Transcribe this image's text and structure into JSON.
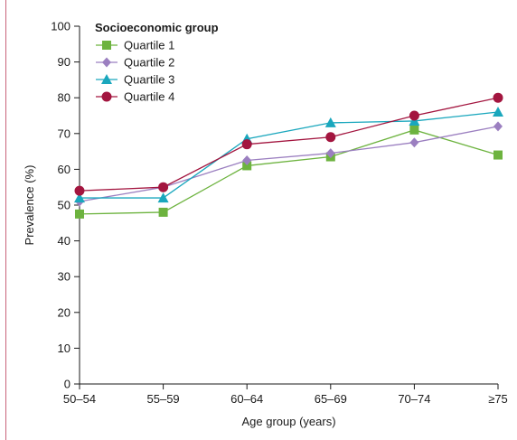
{
  "chart_data": {
    "type": "line",
    "categories": [
      "50–54",
      "55–59",
      "60–64",
      "65–69",
      "70–74",
      "≥75"
    ],
    "xlabel": "Age group (years)",
    "ylabel": "Prevalence (%)",
    "ylim": [
      0,
      100
    ],
    "yticks": [
      0,
      10,
      20,
      30,
      40,
      50,
      60,
      70,
      80,
      90,
      100
    ],
    "grid": false,
    "legend": {
      "title": "Socioeconomic group",
      "placement": "top-left"
    },
    "series": [
      {
        "name": "Quartile 1",
        "color": "#6db33f",
        "marker": "square",
        "values": [
          47.5,
          48,
          61,
          63.5,
          71,
          64
        ]
      },
      {
        "name": "Quartile 2",
        "color": "#9b7fc0",
        "marker": "diamond",
        "values": [
          51,
          55,
          62.5,
          64.5,
          67.5,
          72
        ]
      },
      {
        "name": "Quartile 3",
        "color": "#1aa7bd",
        "marker": "triangle",
        "values": [
          52,
          52,
          68.5,
          73,
          73.5,
          76
        ]
      },
      {
        "name": "Quartile 4",
        "color": "#a3153f",
        "marker": "circle",
        "values": [
          54,
          55,
          67,
          69,
          75,
          80
        ]
      }
    ]
  }
}
